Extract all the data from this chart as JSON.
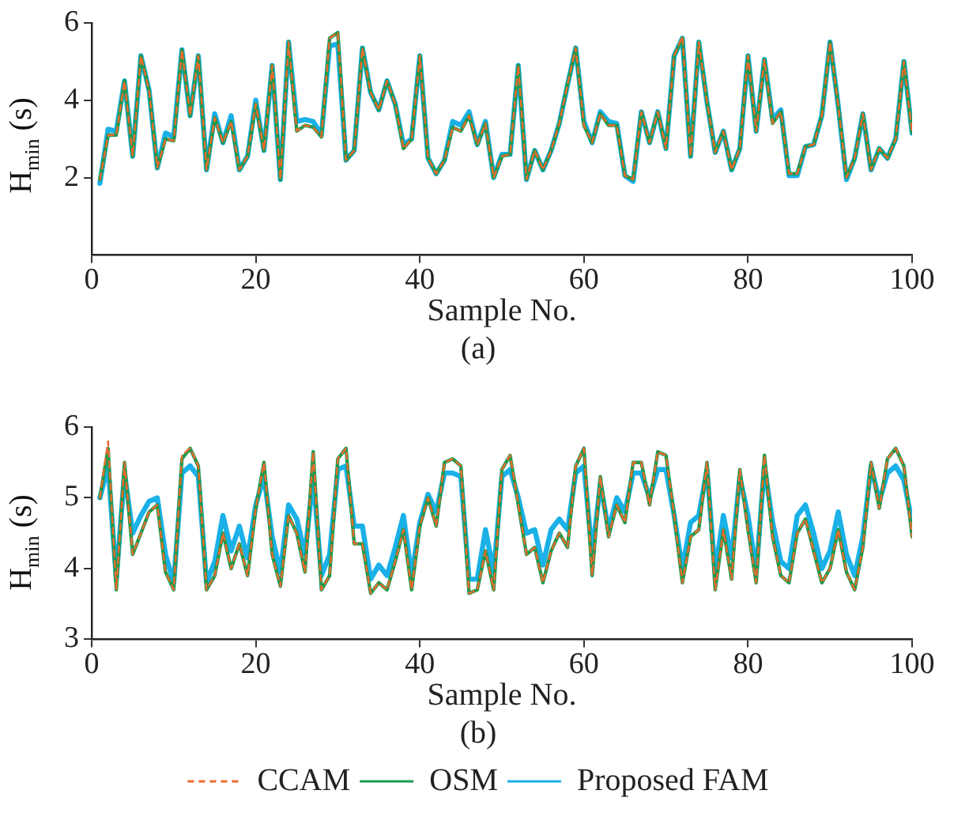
{
  "chart_data": [
    {
      "type": "line",
      "xlabel": "Sample No.",
      "ylabel": "H$_{min}$ (s)",
      "annotations": [
        "(a)"
      ],
      "x": [
        1,
        2,
        3,
        4,
        5,
        6,
        7,
        8,
        9,
        10,
        11,
        12,
        13,
        14,
        15,
        16,
        17,
        18,
        19,
        20,
        21,
        22,
        23,
        24,
        25,
        26,
        27,
        28,
        29,
        30,
        31,
        32,
        33,
        34,
        35,
        36,
        37,
        38,
        39,
        40,
        41,
        42,
        43,
        44,
        45,
        46,
        47,
        48,
        49,
        50,
        51,
        52,
        53,
        54,
        55,
        56,
        57,
        58,
        59,
        60,
        61,
        62,
        63,
        64,
        65,
        66,
        67,
        68,
        69,
        70,
        71,
        72,
        73,
        74,
        75,
        76,
        77,
        78,
        79,
        80,
        81,
        82,
        83,
        84,
        85,
        86,
        87,
        88,
        89,
        90,
        91,
        92,
        93,
        94,
        95,
        96,
        97,
        98,
        99,
        100
      ],
      "xlim": [
        0,
        100
      ],
      "xticks": [
        0,
        20,
        40,
        60,
        80,
        100
      ],
      "ylim": [
        0,
        6
      ],
      "yticks": [
        2,
        4,
        6
      ],
      "grid": false,
      "legend": false,
      "marker": "none",
      "series": [
        {
          "color": "#ec6b2d",
          "line_style": "dashed",
          "values": [
            1.95,
            3.1,
            3.1,
            4.5,
            2.55,
            5.15,
            4.25,
            2.25,
            3.0,
            2.95,
            5.3,
            3.6,
            5.15,
            2.2,
            3.55,
            2.9,
            3.45,
            2.2,
            2.55,
            3.9,
            2.7,
            4.9,
            1.95,
            5.5,
            3.2,
            3.35,
            3.3,
            3.05,
            5.6,
            5.75,
            2.45,
            2.7,
            5.35,
            4.2,
            3.75,
            4.5,
            3.9,
            2.75,
            3.0,
            5.15,
            2.5,
            2.1,
            2.45,
            3.3,
            3.2,
            3.6,
            2.85,
            3.4,
            2.0,
            2.55,
            2.6,
            4.9,
            1.95,
            2.7,
            2.2,
            2.7,
            3.4,
            4.4,
            5.35,
            3.35,
            2.9,
            3.65,
            3.35,
            3.35,
            2.05,
            1.95,
            3.7,
            2.9,
            3.7,
            2.75,
            5.15,
            5.65,
            2.55,
            5.5,
            3.95,
            2.65,
            3.2,
            2.2,
            2.75,
            5.15,
            3.2,
            5.05,
            3.4,
            3.7,
            2.1,
            2.1,
            2.8,
            2.85,
            3.6,
            5.5,
            3.85,
            2.0,
            2.5,
            3.65,
            2.2,
            2.75,
            2.5,
            3.0,
            5.0,
            3.15
          ]
        },
        {
          "color": "#1a9a50",
          "line_style": "solid",
          "values": [
            1.95,
            3.1,
            3.1,
            4.5,
            2.55,
            5.15,
            4.25,
            2.25,
            3.0,
            2.95,
            5.3,
            3.6,
            5.15,
            2.2,
            3.55,
            2.9,
            3.45,
            2.2,
            2.55,
            3.9,
            2.7,
            4.9,
            1.95,
            5.5,
            3.2,
            3.35,
            3.3,
            3.05,
            5.6,
            5.75,
            2.45,
            2.7,
            5.35,
            4.2,
            3.75,
            4.5,
            3.9,
            2.75,
            3.0,
            5.15,
            2.5,
            2.1,
            2.45,
            3.3,
            3.2,
            3.6,
            2.85,
            3.4,
            2.0,
            2.55,
            2.6,
            4.9,
            1.95,
            2.7,
            2.2,
            2.7,
            3.4,
            4.4,
            5.35,
            3.35,
            2.9,
            3.65,
            3.35,
            3.35,
            2.05,
            1.95,
            3.7,
            2.9,
            3.7,
            2.75,
            5.15,
            5.6,
            2.55,
            5.5,
            3.95,
            2.65,
            3.2,
            2.2,
            2.75,
            5.15,
            3.2,
            5.05,
            3.4,
            3.7,
            2.1,
            2.1,
            2.8,
            2.85,
            3.6,
            5.5,
            3.85,
            2.0,
            2.5,
            3.65,
            2.2,
            2.75,
            2.5,
            3.0,
            5.0,
            3.15
          ]
        },
        {
          "color": "#1ab0e8",
          "line_style": "solid",
          "values": [
            1.85,
            3.25,
            3.2,
            4.5,
            2.55,
            5.15,
            4.25,
            2.25,
            3.15,
            3.05,
            5.3,
            3.6,
            5.15,
            2.2,
            3.65,
            2.9,
            3.6,
            2.2,
            2.55,
            4.0,
            2.7,
            4.9,
            1.95,
            5.5,
            3.45,
            3.5,
            3.45,
            3.1,
            5.4,
            5.45,
            2.45,
            2.7,
            5.35,
            4.2,
            3.75,
            4.5,
            3.9,
            2.85,
            3.0,
            5.15,
            2.5,
            2.1,
            2.45,
            3.45,
            3.35,
            3.7,
            2.85,
            3.45,
            2.0,
            2.6,
            2.6,
            4.9,
            1.95,
            2.7,
            2.2,
            2.7,
            3.4,
            4.4,
            5.35,
            3.45,
            2.9,
            3.7,
            3.45,
            3.4,
            2.05,
            1.9,
            3.7,
            2.9,
            3.7,
            2.75,
            5.15,
            5.6,
            2.55,
            5.5,
            3.95,
            2.65,
            3.2,
            2.2,
            2.75,
            5.15,
            3.2,
            5.05,
            3.5,
            3.75,
            2.05,
            2.05,
            2.8,
            2.85,
            3.6,
            5.5,
            3.85,
            1.95,
            2.5,
            3.65,
            2.2,
            2.75,
            2.5,
            3.0,
            5.0,
            3.15
          ]
        }
      ]
    },
    {
      "type": "line",
      "xlabel": "Sample No.",
      "ylabel": "H$_{min}$ (s)",
      "annotations": [
        "(b)"
      ],
      "x": [
        1,
        2,
        3,
        4,
        5,
        6,
        7,
        8,
        9,
        10,
        11,
        12,
        13,
        14,
        15,
        16,
        17,
        18,
        19,
        20,
        21,
        22,
        23,
        24,
        25,
        26,
        27,
        28,
        29,
        30,
        31,
        32,
        33,
        34,
        35,
        36,
        37,
        38,
        39,
        40,
        41,
        42,
        43,
        44,
        45,
        46,
        47,
        48,
        49,
        50,
        51,
        52,
        53,
        54,
        55,
        56,
        57,
        58,
        59,
        60,
        61,
        62,
        63,
        64,
        65,
        66,
        67,
        68,
        69,
        70,
        71,
        72,
        73,
        74,
        75,
        76,
        77,
        78,
        79,
        80,
        81,
        82,
        83,
        84,
        85,
        86,
        87,
        88,
        89,
        90,
        91,
        92,
        93,
        94,
        95,
        96,
        97,
        98,
        99,
        100
      ],
      "xlim": [
        0,
        100
      ],
      "xticks": [
        0,
        20,
        40,
        60,
        80,
        100
      ],
      "ylim": [
        3,
        6
      ],
      "yticks": [
        3,
        4,
        5,
        6
      ],
      "grid": false,
      "legend": "bottom",
      "marker": "none",
      "series": [
        {
          "name": "CCAM",
          "color": "#ec6b2d",
          "line_style": "dashed",
          "values": [
            5.0,
            5.8,
            3.7,
            5.5,
            4.2,
            4.5,
            4.8,
            4.9,
            3.95,
            3.7,
            5.6,
            5.7,
            5.45,
            3.7,
            3.9,
            4.5,
            4.0,
            4.35,
            3.9,
            4.85,
            5.5,
            4.2,
            3.75,
            4.75,
            4.5,
            3.95,
            5.65,
            3.7,
            3.9,
            5.55,
            5.7,
            4.35,
            4.35,
            3.65,
            3.8,
            3.7,
            4.1,
            4.55,
            3.7,
            4.6,
            5.0,
            4.6,
            5.5,
            5.55,
            5.45,
            3.65,
            3.7,
            4.25,
            3.7,
            5.4,
            5.6,
            4.9,
            4.2,
            4.3,
            3.8,
            4.25,
            4.5,
            4.3,
            5.45,
            5.7,
            3.9,
            5.3,
            4.45,
            4.9,
            4.65,
            5.5,
            5.5,
            4.9,
            5.65,
            5.6,
            4.75,
            3.8,
            4.45,
            4.55,
            5.5,
            3.7,
            4.55,
            3.85,
            5.4,
            4.55,
            3.8,
            5.6,
            4.45,
            3.9,
            3.8,
            4.5,
            4.7,
            4.25,
            3.8,
            4.0,
            4.55,
            3.95,
            3.7,
            4.3,
            5.5,
            4.85,
            5.55,
            5.7,
            5.45,
            4.45
          ]
        },
        {
          "name": "OSM",
          "color": "#1a9a50",
          "line_style": "solid",
          "values": [
            5.0,
            5.7,
            3.7,
            5.5,
            4.2,
            4.5,
            4.8,
            4.9,
            3.95,
            3.7,
            5.55,
            5.7,
            5.45,
            3.7,
            3.9,
            4.5,
            4.0,
            4.35,
            3.9,
            4.85,
            5.5,
            4.2,
            3.75,
            4.75,
            4.5,
            3.95,
            5.65,
            3.7,
            3.9,
            5.55,
            5.7,
            4.35,
            4.35,
            3.65,
            3.8,
            3.7,
            4.1,
            4.55,
            3.7,
            4.6,
            5.0,
            4.6,
            5.5,
            5.55,
            5.45,
            3.65,
            3.7,
            4.25,
            3.7,
            5.4,
            5.6,
            4.9,
            4.2,
            4.3,
            3.8,
            4.25,
            4.5,
            4.3,
            5.45,
            5.7,
            3.9,
            5.3,
            4.45,
            4.9,
            4.65,
            5.5,
            5.5,
            4.9,
            5.65,
            5.6,
            4.75,
            3.8,
            4.45,
            4.55,
            5.5,
            3.7,
            4.55,
            3.85,
            5.4,
            4.55,
            3.8,
            5.6,
            4.45,
            3.9,
            3.8,
            4.5,
            4.7,
            4.25,
            3.8,
            4.0,
            4.55,
            3.95,
            3.7,
            4.3,
            5.5,
            4.85,
            5.55,
            5.7,
            5.45,
            4.45
          ]
        },
        {
          "name": "Proposed FAM",
          "color": "#1ab0e8",
          "line_style": "solid",
          "values": [
            5.0,
            5.45,
            3.85,
            5.35,
            4.5,
            4.75,
            4.95,
            5.0,
            4.2,
            3.8,
            5.35,
            5.45,
            5.3,
            3.8,
            4.1,
            4.75,
            4.25,
            4.6,
            4.15,
            4.9,
            5.3,
            4.45,
            3.95,
            4.9,
            4.7,
            4.2,
            5.3,
            3.9,
            4.2,
            5.4,
            5.45,
            4.6,
            4.6,
            3.85,
            4.05,
            3.9,
            4.3,
            4.75,
            3.9,
            4.65,
            5.05,
            4.8,
            5.35,
            5.35,
            5.3,
            3.85,
            3.85,
            4.55,
            3.95,
            5.3,
            5.4,
            5.0,
            4.5,
            4.55,
            4.05,
            4.55,
            4.7,
            4.55,
            5.35,
            5.45,
            4.2,
            5.2,
            4.55,
            5.0,
            4.8,
            5.35,
            5.35,
            5.0,
            5.4,
            5.4,
            4.75,
            4.0,
            4.65,
            4.75,
            5.4,
            3.95,
            4.75,
            4.15,
            5.3,
            4.75,
            3.95,
            5.45,
            4.65,
            4.1,
            4.0,
            4.75,
            4.9,
            4.5,
            4.0,
            4.25,
            4.8,
            4.2,
            3.9,
            4.45,
            5.45,
            4.95,
            5.35,
            5.45,
            5.25,
            4.65
          ]
        }
      ]
    }
  ]
}
